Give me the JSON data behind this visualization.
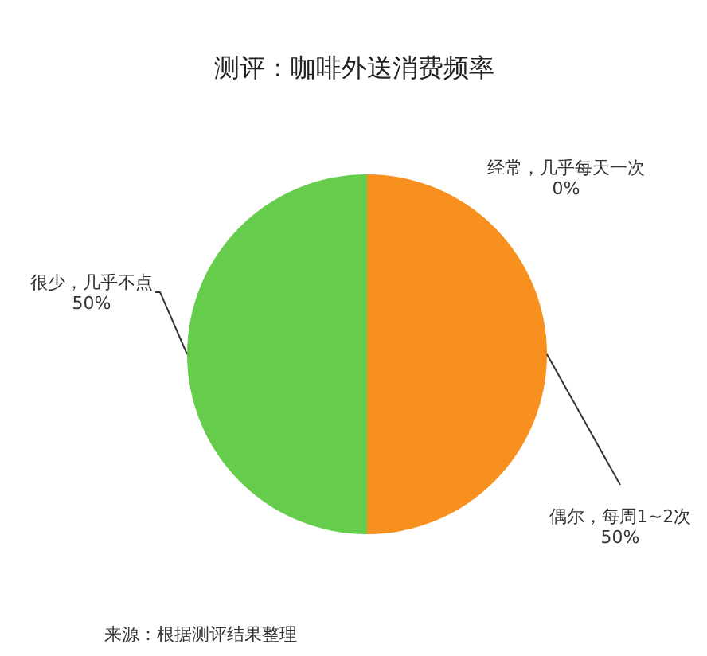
{
  "chart_data": {
    "type": "pie",
    "title": "测评：咖啡外送消费频率",
    "categories": [
      "经常，几乎每天一次",
      "偶尔，每周1~2次",
      "很少，几乎不点"
    ],
    "values": [
      0,
      50,
      50
    ],
    "colors": [
      null,
      "#f7901e",
      "#66cc4c"
    ],
    "value_labels": [
      "0%",
      "50%",
      "50%"
    ],
    "annotations": [
      "来源：根据测评结果整理"
    ]
  }
}
